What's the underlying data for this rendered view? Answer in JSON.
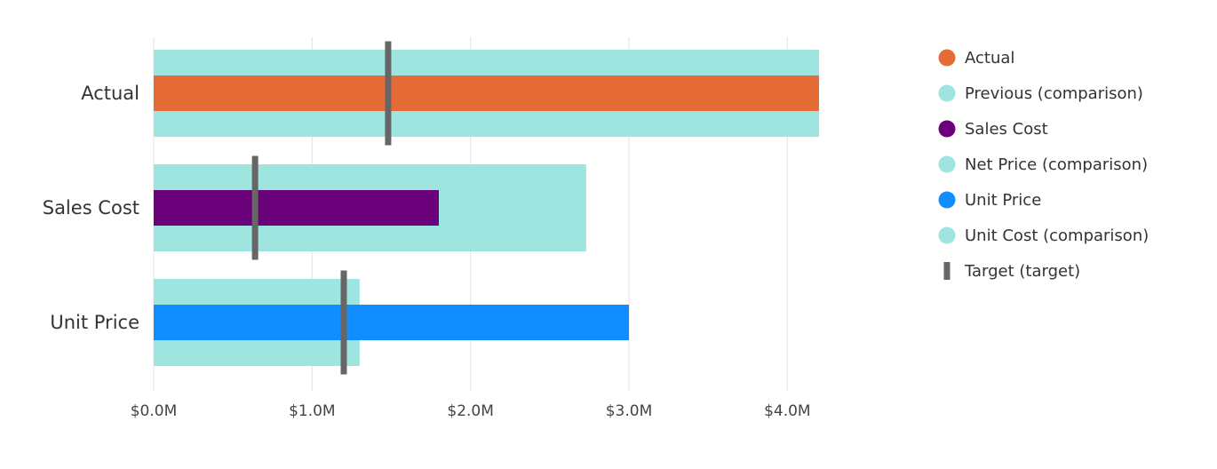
{
  "chart_data": {
    "type": "bar",
    "orientation": "horizontal",
    "subtype": "bullet",
    "categories": [
      "Actual",
      "Sales Cost",
      "Unit Price"
    ],
    "xlim": [
      0,
      4200000
    ],
    "x_ticks": [
      0,
      1000000,
      2000000,
      3000000,
      4000000
    ],
    "x_tick_labels": [
      "$0.0M",
      "$1.0M",
      "$2.0M",
      "$3.0M",
      "$4.0M"
    ],
    "grid": true,
    "legend_position": "right",
    "bars": [
      {
        "category": "Actual",
        "name": "Actual",
        "value": 4200000,
        "comparison_name": "Previous (comparison)",
        "comparison": 4200000,
        "target": 1480000
      },
      {
        "category": "Sales Cost",
        "name": "Sales Cost",
        "value": 1800000,
        "comparison_name": "Net Price (comparison)",
        "comparison": 2730000,
        "target": 640000
      },
      {
        "category": "Unit Price",
        "name": "Unit Price",
        "value": 3000000,
        "comparison_name": "Unit Cost (comparison)",
        "comparison": 1300000,
        "target": 1200000
      }
    ],
    "legend": [
      {
        "label": "Actual",
        "color": "#E66C37",
        "shape": "circle"
      },
      {
        "label": "Previous (comparison)",
        "color": "#9DE5DE",
        "shape": "circle"
      },
      {
        "label": "Sales Cost",
        "color": "#6B007B",
        "shape": "circle"
      },
      {
        "label": "Net Price (comparison)",
        "color": "#9DE5DE",
        "shape": "circle"
      },
      {
        "label": "Unit Price",
        "color": "#118DFF",
        "shape": "circle"
      },
      {
        "label": "Unit Cost (comparison)",
        "color": "#9DE5DE",
        "shape": "circle"
      },
      {
        "label": "Target (target)",
        "color": "#666666",
        "shape": "bar"
      }
    ],
    "colors": {
      "Actual": "#E66C37",
      "Sales Cost": "#6B007B",
      "Unit Price": "#118DFF",
      "comparison": "#9DE5DE",
      "target": "#666666",
      "grid": "#E3E3E3"
    }
  }
}
